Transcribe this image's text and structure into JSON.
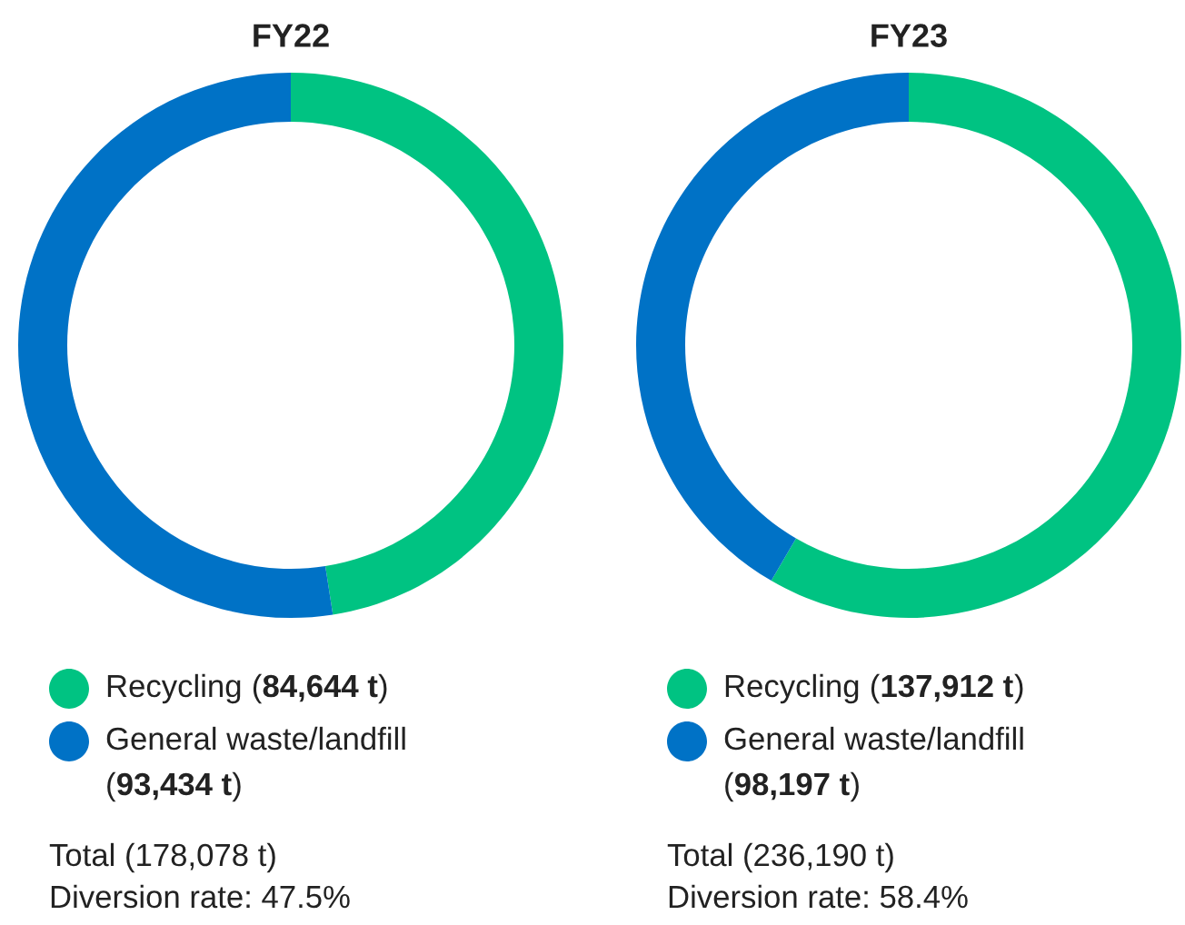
{
  "chart_data": [
    {
      "type": "donut",
      "title": "FY22",
      "categories": [
        "Recycling",
        "General waste/landfill"
      ],
      "values": [
        84644,
        93434
      ],
      "value_labels": [
        "(84,644 t)",
        "(93,434 t)"
      ],
      "colors": [
        "#00c382",
        "#0072c6"
      ],
      "legend": "bottom",
      "annotations": [
        "Total (178,078 t)",
        "Diversion rate: 47.5%"
      ]
    },
    {
      "type": "donut",
      "title": "FY23",
      "categories": [
        "Recycling",
        "General waste/landfill"
      ],
      "values": [
        137912,
        98197
      ],
      "value_labels": [
        "(137,912 t)",
        "(98,197 t)"
      ],
      "colors": [
        "#00c382",
        "#0072c6"
      ],
      "legend": "bottom",
      "annotations": [
        "Total (236,190 t)",
        "Diversion rate: 58.4%"
      ]
    }
  ]
}
